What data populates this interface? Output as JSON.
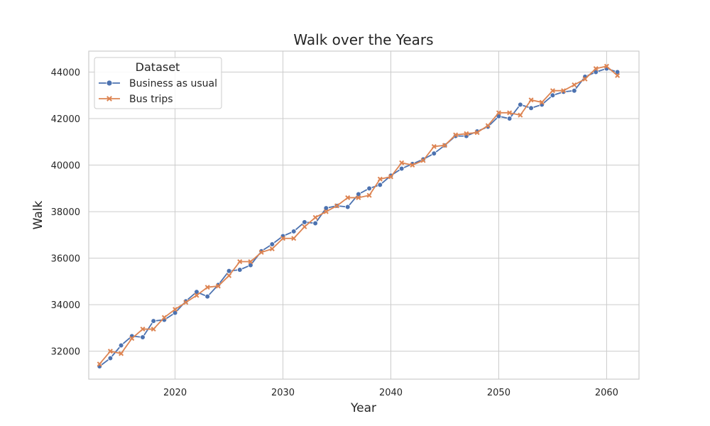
{
  "chart_data": {
    "type": "line",
    "title": "Walk over the Years",
    "xlabel": "Year",
    "ylabel": "Walk",
    "xlim": [
      2012,
      2063
    ],
    "ylim": [
      30800,
      44900
    ],
    "x_ticks": [
      2020,
      2030,
      2040,
      2050,
      2060
    ],
    "y_ticks": [
      32000,
      34000,
      36000,
      38000,
      40000,
      42000,
      44000
    ],
    "grid": true,
    "legend": {
      "title": "Dataset",
      "position": "top-left"
    },
    "x": [
      2013,
      2014,
      2015,
      2016,
      2017,
      2018,
      2019,
      2020,
      2021,
      2022,
      2023,
      2024,
      2025,
      2026,
      2027,
      2028,
      2029,
      2030,
      2031,
      2032,
      2033,
      2034,
      2035,
      2036,
      2037,
      2038,
      2039,
      2040,
      2041,
      2042,
      2043,
      2044,
      2045,
      2046,
      2047,
      2048,
      2049,
      2050,
      2051,
      2052,
      2053,
      2054,
      2055,
      2056,
      2057,
      2058,
      2059,
      2060,
      2061
    ],
    "series": [
      {
        "name": "Business as usual",
        "color": "#4c72b0",
        "marker": "circle",
        "values": [
          31350,
          31700,
          32250,
          32650,
          32600,
          33300,
          33350,
          33650,
          34150,
          34550,
          34350,
          34850,
          35450,
          35500,
          35700,
          36300,
          36600,
          36950,
          37150,
          37550,
          37500,
          38150,
          38250,
          38200,
          38750,
          39000,
          39150,
          39550,
          39850,
          40050,
          40250,
          40500,
          40850,
          41250,
          41250,
          41450,
          41650,
          42100,
          42000,
          42600,
          42450,
          42600,
          43000,
          43150,
          43200,
          43800,
          44000,
          44150,
          44000
        ]
      },
      {
        "name": "Bus trips",
        "color": "#dd8452",
        "marker": "x",
        "values": [
          31450,
          32000,
          31900,
          32550,
          32950,
          32950,
          33450,
          33800,
          34100,
          34400,
          34750,
          34800,
          35250,
          35850,
          35850,
          36250,
          36400,
          36850,
          36850,
          37350,
          37750,
          38000,
          38250,
          38600,
          38600,
          38700,
          39400,
          39500,
          40100,
          40000,
          40200,
          40800,
          40850,
          41300,
          41350,
          41400,
          41700,
          42250,
          42250,
          42150,
          42800,
          42700,
          43200,
          43200,
          43450,
          43700,
          44150,
          44250,
          43850
        ]
      }
    ]
  }
}
